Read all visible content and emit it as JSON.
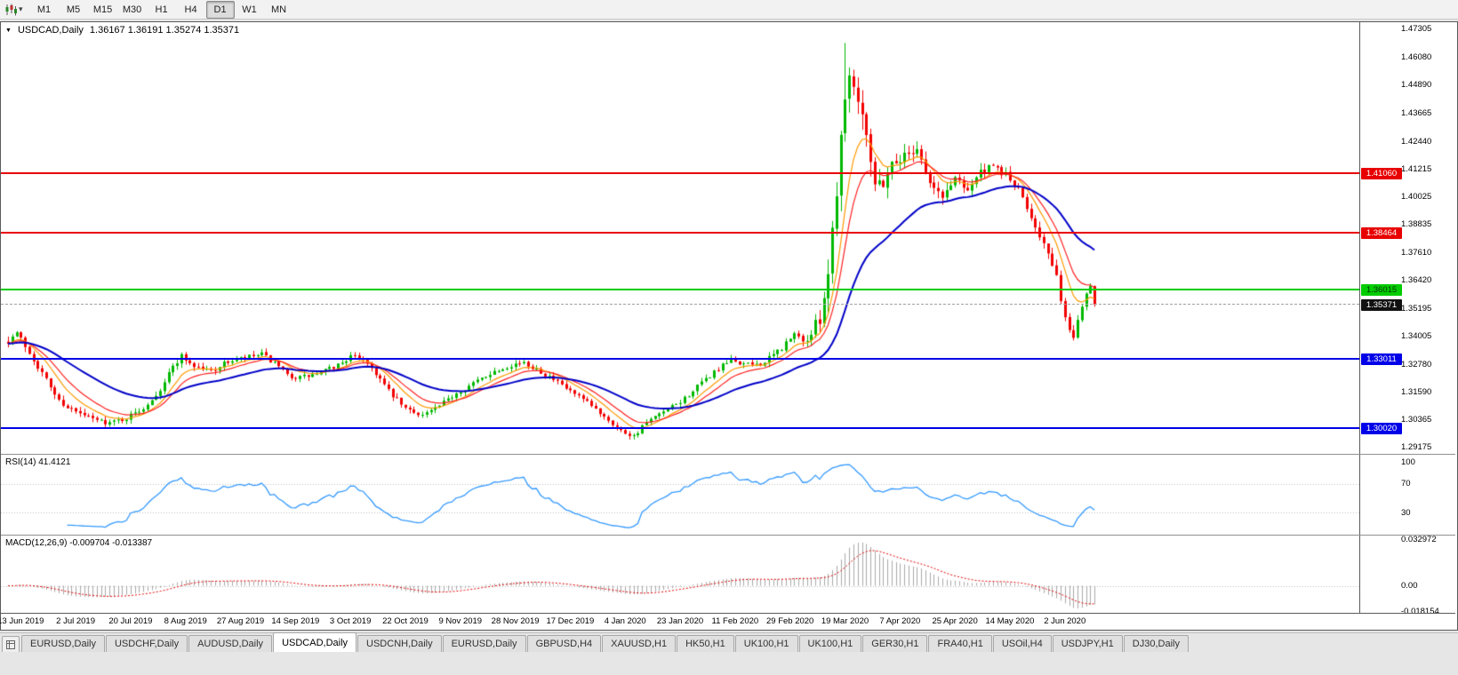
{
  "toolbar": {
    "timeframes": [
      "M1",
      "M5",
      "M15",
      "M30",
      "H1",
      "H4",
      "D1",
      "W1",
      "MN"
    ],
    "active_timeframe": "D1"
  },
  "chart_title": {
    "symbol": "USDCAD,Daily",
    "ohlc_text": "1.36167 1.36191 1.35274 1.35371"
  },
  "panes": {
    "rsi": {
      "label": "RSI(14) 41.4121"
    },
    "macd": {
      "label": "MACD(12,26,9) -0.009704 -0.013387"
    }
  },
  "main_axis": {
    "labels": [
      "1.47305",
      "1.46080",
      "1.44890",
      "1.43665",
      "1.42440",
      "1.41215",
      "1.40025",
      "1.38835",
      "1.37610",
      "1.36420",
      "1.35195",
      "1.34005",
      "1.32780",
      "1.31590",
      "1.30365",
      "1.29175"
    ]
  },
  "h_lines": [
    {
      "label": "1.41060",
      "value": 1.4106,
      "color": "#E80000",
      "text_color": "#FFFFFF",
      "style": "solid",
      "role": "resistance"
    },
    {
      "label": "1.38464",
      "value": 1.38464,
      "color": "#E80000",
      "text_color": "#FFFFFF",
      "style": "solid",
      "role": "resistance"
    },
    {
      "label": "1.36015",
      "value": 1.36015,
      "color": "#00CC00",
      "text_color": "#00330 0",
      "style": "solid",
      "role": "level"
    },
    {
      "label": "1.35371",
      "value": 1.35371,
      "color": "#111111",
      "text_color": "#FFFFFF",
      "style": "dashed",
      "role": "current-price"
    },
    {
      "label": "1.33011",
      "value": 1.33011,
      "color": "#0000E8",
      "text_color": "#FFFFFF",
      "style": "solid",
      "role": "support"
    },
    {
      "label": "1.30020",
      "value": 1.3002,
      "color": "#0000E8",
      "text_color": "#FFFFFF",
      "style": "solid",
      "role": "support"
    }
  ],
  "date_axis": {
    "labels": [
      "13 Jun 2019",
      "2 Jul 2019",
      "20 Jul 2019",
      "8 Aug 2019",
      "27 Aug 2019",
      "14 Sep 2019",
      "3 Oct 2019",
      "22 Oct 2019",
      "9 Nov 2019",
      "28 Nov 2019",
      "17 Dec 2019",
      "4 Jan 2020",
      "23 Jan 2020",
      "11 Feb 2020",
      "29 Feb 2020",
      "19 Mar 2020",
      "7 Apr 2020",
      "25 Apr 2020",
      "14 May 2020",
      "2 Jun 2020"
    ],
    "indices": [
      3,
      16,
      29,
      42,
      55,
      68,
      81,
      94,
      107,
      120,
      133,
      146,
      159,
      172,
      185,
      198,
      211,
      224,
      237,
      250
    ]
  },
  "tabs": {
    "items": [
      "EURUSD,Daily",
      "USDCHF,Daily",
      "AUDUSD,Daily",
      "USDCAD,Daily",
      "USDCNH,Daily",
      "EURUSD,Daily",
      "GBPUSD,H4",
      "XAUUSD,H1",
      "HK50,H1",
      "UK100,H1",
      "UK100,H1",
      "GER30,H1",
      "FRA40,H1",
      "USOil,H4",
      "USDJPY,H1",
      "DJ30,Daily"
    ],
    "active_index": 3
  },
  "colors": {
    "bull": "#00B800",
    "bear": "#F20000",
    "ma_fast": "#FF9900",
    "ma_mid": "#FF2020",
    "ma_slow": "#0000C8",
    "rsi": "#3399FF",
    "macd_hist": "#A8A8A8",
    "macd_signal": "#E00000",
    "level_dotted": "#BBBBBB"
  },
  "chart_data": {
    "type": "candlestick",
    "symbol": "USDCAD",
    "timeframe": "Daily",
    "current_ohlc": {
      "open": 1.36167,
      "high": 1.36191,
      "low": 1.35274,
      "close": 1.35371
    },
    "num_candles": 258,
    "price_range": [
      1.289,
      1.476
    ],
    "seed": 7,
    "peak": {
      "index": 198,
      "high": 1.467
    },
    "trough": {
      "index": 148,
      "low": 1.2952
    },
    "price_anchors": [
      [
        0,
        1.338,
        0.003
      ],
      [
        2,
        1.3415,
        0.003
      ],
      [
        5,
        1.333,
        0.003
      ],
      [
        8,
        1.324,
        0.0028
      ],
      [
        12,
        1.312,
        0.0028
      ],
      [
        16,
        1.307,
        0.0026
      ],
      [
        20,
        1.304,
        0.0024
      ],
      [
        24,
        1.3025,
        0.0024
      ],
      [
        28,
        1.3045,
        0.0024
      ],
      [
        32,
        1.309,
        0.0026
      ],
      [
        36,
        1.317,
        0.0026
      ],
      [
        39,
        1.327,
        0.0028
      ],
      [
        41,
        1.3315,
        0.0028
      ],
      [
        44,
        1.327,
        0.0026
      ],
      [
        48,
        1.325,
        0.0025
      ],
      [
        52,
        1.329,
        0.0025
      ],
      [
        56,
        1.3305,
        0.0026
      ],
      [
        60,
        1.332,
        0.0025
      ],
      [
        63,
        1.328,
        0.0025
      ],
      [
        66,
        1.323,
        0.0025
      ],
      [
        69,
        1.322,
        0.0025
      ],
      [
        73,
        1.3235,
        0.0024
      ],
      [
        77,
        1.3265,
        0.0024
      ],
      [
        81,
        1.331,
        0.0025
      ],
      [
        84,
        1.3305,
        0.0025
      ],
      [
        87,
        1.324,
        0.0026
      ],
      [
        90,
        1.316,
        0.0026
      ],
      [
        94,
        1.3085,
        0.0025
      ],
      [
        98,
        1.306,
        0.0023
      ],
      [
        102,
        1.3095,
        0.0023
      ],
      [
        106,
        1.3155,
        0.0023
      ],
      [
        110,
        1.3195,
        0.0023
      ],
      [
        114,
        1.324,
        0.0023
      ],
      [
        118,
        1.327,
        0.0023
      ],
      [
        121,
        1.3285,
        0.0023
      ],
      [
        125,
        1.326,
        0.0023
      ],
      [
        129,
        1.321,
        0.0023
      ],
      [
        133,
        1.316,
        0.0023
      ],
      [
        137,
        1.311,
        0.0022
      ],
      [
        141,
        1.3055,
        0.0022
      ],
      [
        145,
        1.299,
        0.0022
      ],
      [
        148,
        1.2968,
        0.0022
      ],
      [
        151,
        1.3025,
        0.0022
      ],
      [
        155,
        1.307,
        0.0022
      ],
      [
        159,
        1.3115,
        0.0023
      ],
      [
        163,
        1.318,
        0.0024
      ],
      [
        167,
        1.3245,
        0.0024
      ],
      [
        171,
        1.3295,
        0.0026
      ],
      [
        175,
        1.3275,
        0.0026
      ],
      [
        179,
        1.3285,
        0.0028
      ],
      [
        183,
        1.335,
        0.0032
      ],
      [
        186,
        1.3405,
        0.0035
      ],
      [
        189,
        1.338,
        0.004
      ],
      [
        192,
        1.348,
        0.006
      ],
      [
        194,
        1.368,
        0.009
      ],
      [
        196,
        1.405,
        0.012
      ],
      [
        198,
        1.448,
        0.013
      ],
      [
        199,
        1.452,
        0.012
      ],
      [
        201,
        1.445,
        0.01
      ],
      [
        203,
        1.43,
        0.009
      ],
      [
        205,
        1.406,
        0.008
      ],
      [
        207,
        1.407,
        0.007
      ],
      [
        209,
        1.415,
        0.006
      ],
      [
        212,
        1.418,
        0.0055
      ],
      [
        215,
        1.422,
        0.005
      ],
      [
        218,
        1.406,
        0.005
      ],
      [
        221,
        1.4,
        0.0045
      ],
      [
        224,
        1.409,
        0.0045
      ],
      [
        227,
        1.404,
        0.004
      ],
      [
        230,
        1.411,
        0.004
      ],
      [
        233,
        1.413,
        0.0038
      ],
      [
        236,
        1.41,
        0.0038
      ],
      [
        239,
        1.403,
        0.0036
      ],
      [
        242,
        1.392,
        0.0036
      ],
      [
        245,
        1.38,
        0.0035
      ],
      [
        248,
        1.365,
        0.0035
      ],
      [
        250,
        1.348,
        0.0035
      ],
      [
        251,
        1.342,
        0.003
      ],
      [
        252,
        1.3395,
        0.003
      ],
      [
        253,
        1.348,
        0.0028
      ],
      [
        254,
        1.353,
        0.0025
      ],
      [
        255,
        1.359,
        0.0022
      ],
      [
        256,
        1.3617,
        0.0018
      ],
      [
        257,
        1.3537,
        0.0018
      ]
    ],
    "moving_averages": [
      {
        "period": 8,
        "color_key": "ma_fast",
        "width": 1.2
      },
      {
        "period": 13,
        "color_key": "ma_mid",
        "width": 1.2
      },
      {
        "period": 34,
        "color_key": "ma_slow",
        "width": 2
      }
    ],
    "rsi": {
      "period": 14,
      "current": 41.4121,
      "range": [
        0,
        110
      ],
      "levels": [
        70,
        30
      ],
      "axis_labels": [
        "100",
        "70",
        "30"
      ],
      "axis_values": [
        100,
        70,
        30
      ]
    },
    "macd": {
      "fast": 12,
      "slow": 26,
      "signal": 9,
      "current_main": -0.009704,
      "current_signal": -0.013387,
      "range": [
        -0.0185,
        0.0355
      ],
      "axis_labels": [
        "0.032972",
        "0.00",
        "-0.018154"
      ],
      "axis_values": [
        0.032972,
        0,
        -0.018154
      ]
    }
  }
}
